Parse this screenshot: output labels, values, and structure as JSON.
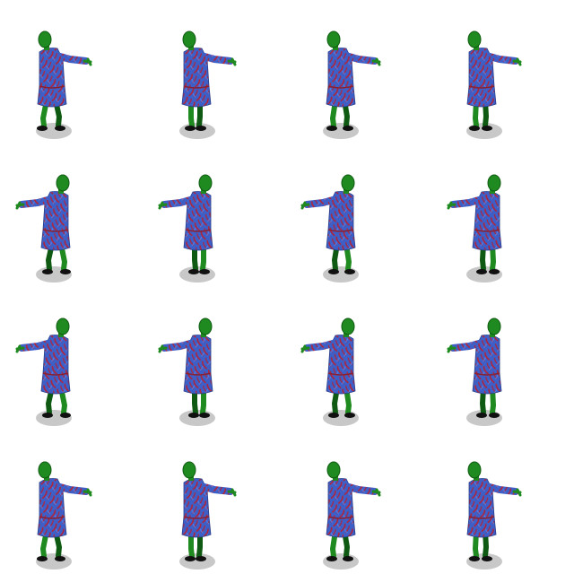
{
  "sprite_sheet": {
    "grid": {
      "rows": 4,
      "cols": 4
    },
    "character": "zombie",
    "colors": {
      "background": "#ffffff",
      "skin": "#1f8a1f",
      "skin_dark": "#0f5a12",
      "robe": "#3d5fc8",
      "robe_pattern": "#b0243a",
      "shoe": "#111111",
      "shadow": "#c8c8c8"
    },
    "rows": [
      {
        "direction": "east",
        "facing": 1
      },
      {
        "direction": "west",
        "facing": -1
      },
      {
        "direction": "west",
        "facing": -1
      },
      {
        "direction": "east",
        "facing": 1
      }
    ],
    "frames": [
      {
        "row": 0,
        "col": 0,
        "pose": {
          "lean": 0,
          "stride": 2
        }
      },
      {
        "row": 0,
        "col": 1,
        "pose": {
          "lean": 1,
          "stride": -2
        }
      },
      {
        "row": 0,
        "col": 2,
        "pose": {
          "lean": 2,
          "stride": 1
        }
      },
      {
        "row": 0,
        "col": 3,
        "pose": {
          "lean": -1,
          "stride": -1
        }
      },
      {
        "row": 1,
        "col": 0,
        "pose": {
          "lean": 0,
          "stride": 2
        }
      },
      {
        "row": 1,
        "col": 1,
        "pose": {
          "lean": 1,
          "stride": -2
        }
      },
      {
        "row": 1,
        "col": 2,
        "pose": {
          "lean": 2,
          "stride": 1
        }
      },
      {
        "row": 1,
        "col": 3,
        "pose": {
          "lean": -1,
          "stride": -1
        }
      },
      {
        "row": 2,
        "col": 0,
        "pose": {
          "lean": 0,
          "stride": 2
        }
      },
      {
        "row": 2,
        "col": 1,
        "pose": {
          "lean": 1,
          "stride": -2
        }
      },
      {
        "row": 2,
        "col": 2,
        "pose": {
          "lean": 2,
          "stride": 1
        }
      },
      {
        "row": 2,
        "col": 3,
        "pose": {
          "lean": -1,
          "stride": -1
        }
      },
      {
        "row": 3,
        "col": 0,
        "pose": {
          "lean": 0,
          "stride": 2
        }
      },
      {
        "row": 3,
        "col": 1,
        "pose": {
          "lean": 1,
          "stride": -2
        }
      },
      {
        "row": 3,
        "col": 2,
        "pose": {
          "lean": 2,
          "stride": 1
        }
      },
      {
        "row": 3,
        "col": 3,
        "pose": {
          "lean": -1,
          "stride": -1
        }
      }
    ]
  }
}
